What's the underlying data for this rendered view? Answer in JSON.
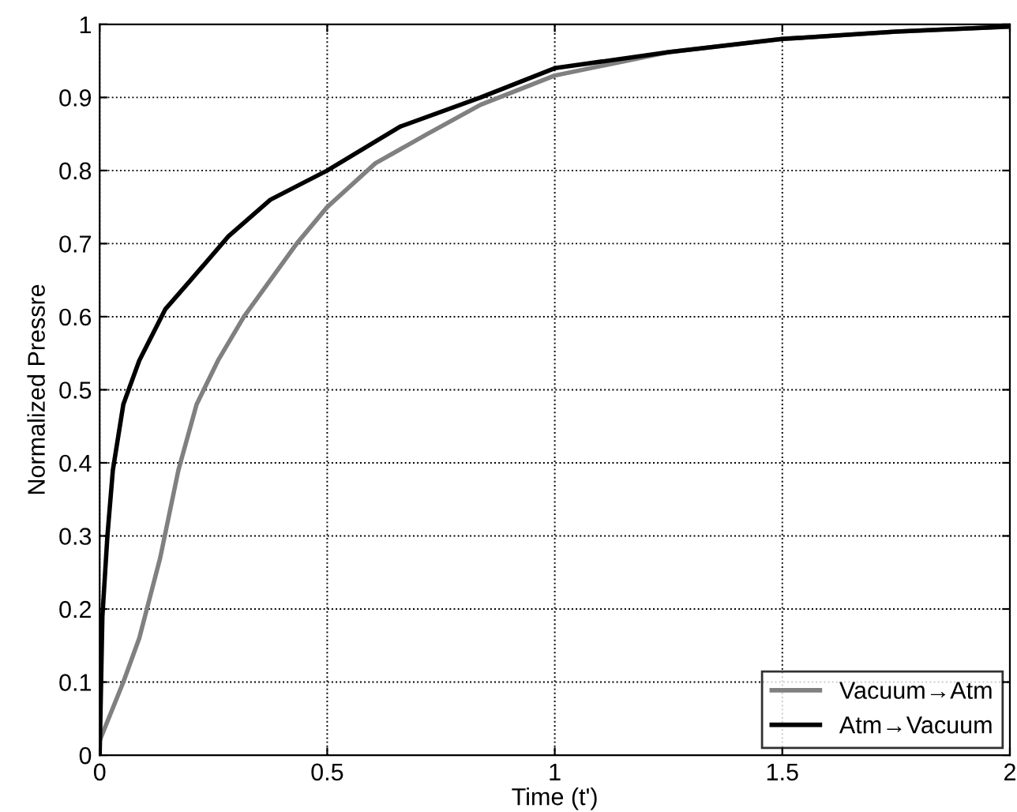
{
  "chart_data": {
    "type": "line",
    "xlabel": "Time (t')",
    "ylabel": "Normalized Pressre",
    "xlim": [
      0,
      2
    ],
    "ylim": [
      0,
      1
    ],
    "xticks": [
      0,
      0.5,
      1,
      1.5,
      2
    ],
    "yticks": [
      0,
      0.1,
      0.2,
      0.3,
      0.4,
      0.5,
      0.6,
      0.7,
      0.8,
      0.9,
      1
    ],
    "grid": true,
    "legend": "bottom right",
    "line_style": "solid",
    "marker": "none",
    "series": [
      {
        "name": "Vacuum→Atm",
        "color": "#808080",
        "x": [
          0,
          0.052,
          0.087,
          0.133,
          0.173,
          0.213,
          0.26,
          0.317,
          0.375,
          0.433,
          0.5,
          0.606,
          0.72,
          0.837,
          1,
          1.25,
          1.5,
          1.75,
          2
        ],
        "values": [
          0.02,
          0.1,
          0.16,
          0.27,
          0.39,
          0.48,
          0.54,
          0.6,
          0.65,
          0.7,
          0.75,
          0.81,
          0.85,
          0.89,
          0.93,
          0.962,
          0.98,
          0.99,
          0.997
        ]
      },
      {
        "name": "Atm→Vacuum",
        "color": "#000000",
        "x": [
          0,
          0.006,
          0.017,
          0.029,
          0.052,
          0.087,
          0.144,
          0.2,
          0.283,
          0.375,
          0.5,
          0.66,
          0.837,
          1,
          1.25,
          1.5,
          1.75,
          2
        ],
        "values": [
          0,
          0.19,
          0.3,
          0.39,
          0.48,
          0.54,
          0.61,
          0.65,
          0.71,
          0.76,
          0.8,
          0.86,
          0.9,
          0.94,
          0.962,
          0.98,
          0.99,
          0.997
        ]
      }
    ]
  }
}
